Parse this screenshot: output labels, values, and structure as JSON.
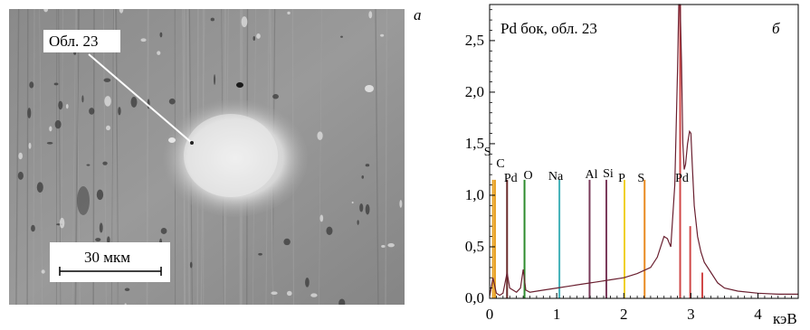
{
  "panel_a": {
    "letter": "а",
    "callout_label": "Обл. 23",
    "scale_bar_label": "30 мкм"
  },
  "panel_b": {
    "letter": "б",
    "title": "Pd бок, обл. 23",
    "x_unit": "кэВ"
  },
  "element_labels": [
    {
      "text": "S",
      "x_kev": 0.05,
      "color": "#e0a020"
    },
    {
      "text": "C",
      "x_kev": 0.19,
      "color": "#3060b0"
    },
    {
      "text": "Pd",
      "x_kev": 0.26,
      "color": "#6a2a2a"
    },
    {
      "text": "O",
      "x_kev": 0.52,
      "color": "#2e8b2e"
    },
    {
      "text": "Na",
      "x_kev": 1.04,
      "color": "#40a0b0"
    },
    {
      "text": "Al",
      "x_kev": 1.49,
      "color": "#8a5070"
    },
    {
      "text": "Si",
      "x_kev": 1.74,
      "color": "#8a5070"
    },
    {
      "text": "P",
      "x_kev": 2.01,
      "color": "#e8c020"
    },
    {
      "text": "S",
      "x_kev": 2.31,
      "color": "#e08a20"
    },
    {
      "text": "Pd",
      "x_kev": 2.84,
      "color": "#c04040"
    }
  ],
  "chart_data": {
    "type": "line",
    "title": "Pd бок, обл. 23",
    "xlabel": "кэВ",
    "ylabel": "",
    "xlim": [
      0,
      4.6
    ],
    "ylim": [
      0,
      2.85
    ],
    "x_ticks": [
      "0",
      "1",
      "2",
      "3",
      "4"
    ],
    "y_ticks": [
      "0,0",
      "0,5",
      "1,0",
      "1,5",
      "2,0",
      "2,5"
    ],
    "series": [
      {
        "x": [
          0.0,
          0.05,
          0.1,
          0.15,
          0.2,
          0.26,
          0.3,
          0.4,
          0.46,
          0.5,
          0.54,
          0.6,
          0.8,
          1.0,
          1.2,
          1.4,
          1.6,
          1.8,
          2.0,
          2.2,
          2.4,
          2.5,
          2.6,
          2.65,
          2.7,
          2.76,
          2.8,
          2.82,
          2.84,
          2.86,
          2.88,
          2.9,
          2.92,
          2.95,
          2.98,
          3.0,
          3.02,
          3.05,
          3.1,
          3.15,
          3.2,
          3.3,
          3.4,
          3.5,
          3.7,
          4.0,
          4.3,
          4.6
        ],
        "y": [
          0.02,
          0.2,
          0.05,
          0.03,
          0.05,
          0.25,
          0.1,
          0.06,
          0.1,
          0.28,
          0.08,
          0.06,
          0.08,
          0.1,
          0.12,
          0.14,
          0.16,
          0.18,
          0.2,
          0.24,
          0.3,
          0.4,
          0.6,
          0.58,
          0.5,
          1.1,
          2.2,
          2.85,
          2.85,
          2.3,
          1.5,
          1.25,
          1.3,
          1.5,
          1.62,
          1.6,
          1.3,
          0.9,
          0.6,
          0.45,
          0.35,
          0.25,
          0.15,
          0.1,
          0.07,
          0.05,
          0.04,
          0.04
        ],
        "color": "#6a2030"
      }
    ],
    "markers": [
      {
        "x": 0.05,
        "h": 1.15,
        "color": "#e8a020"
      },
      {
        "x": 0.08,
        "h": 1.15,
        "color": "#e8a020"
      },
      {
        "x": 0.26,
        "h": 1.15,
        "color": "#6a2a2a"
      },
      {
        "x": 0.52,
        "h": 1.15,
        "color": "#2e8b2e"
      },
      {
        "x": 1.04,
        "h": 1.15,
        "color": "#40b0b8"
      },
      {
        "x": 1.49,
        "h": 1.15,
        "color": "#7a3a5a"
      },
      {
        "x": 1.74,
        "h": 1.15,
        "color": "#7a3a5a"
      },
      {
        "x": 2.01,
        "h": 1.15,
        "color": "#f0d020"
      },
      {
        "x": 2.31,
        "h": 1.15,
        "color": "#e88a20"
      },
      {
        "x": 2.84,
        "h": 2.85,
        "color": "#d04848"
      },
      {
        "x": 2.99,
        "h": 0.7,
        "color": "#d04848"
      },
      {
        "x": 3.17,
        "h": 0.25,
        "color": "#d04848"
      }
    ]
  }
}
